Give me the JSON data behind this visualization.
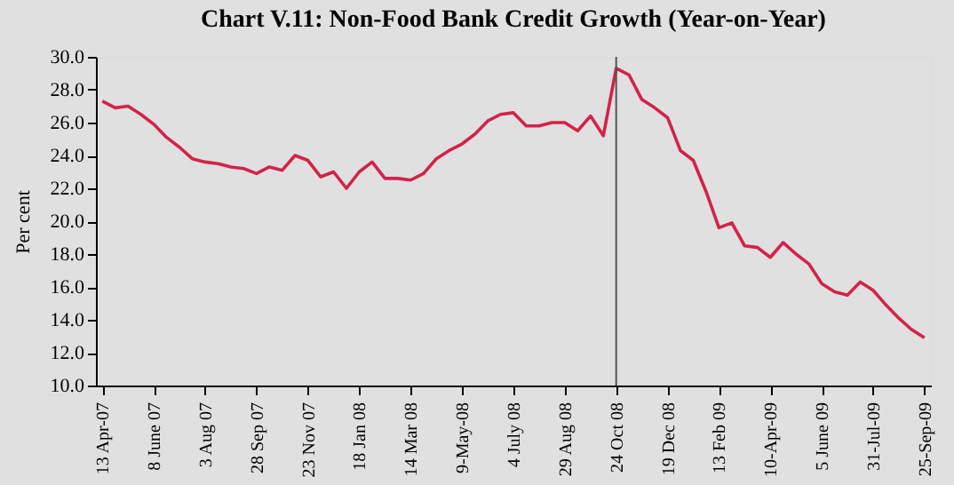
{
  "chart_data": {
    "type": "line",
    "title": "Chart V.11: Non-Food Bank Credit Growth (Year-on-Year)",
    "ylabel": "Per cent",
    "x": [
      "2007-04-13",
      "2007-04-27",
      "2007-05-11",
      "2007-05-25",
      "2007-06-08",
      "2007-06-22",
      "2007-07-06",
      "2007-07-20",
      "2007-08-03",
      "2007-08-17",
      "2007-08-31",
      "2007-09-14",
      "2007-09-28",
      "2007-10-12",
      "2007-10-26",
      "2007-11-09",
      "2007-11-23",
      "2007-12-07",
      "2007-12-21",
      "2008-01-04",
      "2008-01-18",
      "2008-02-01",
      "2008-02-15",
      "2008-02-29",
      "2008-03-14",
      "2008-03-28",
      "2008-04-11",
      "2008-04-25",
      "2008-05-09",
      "2008-05-23",
      "2008-06-06",
      "2008-06-20",
      "2008-07-04",
      "2008-07-18",
      "2008-08-01",
      "2008-08-15",
      "2008-08-29",
      "2008-09-12",
      "2008-09-26",
      "2008-10-10",
      "2008-10-24",
      "2008-11-07",
      "2008-11-21",
      "2008-12-05",
      "2008-12-19",
      "2009-01-02",
      "2009-01-16",
      "2009-01-30",
      "2009-02-13",
      "2009-02-27",
      "2009-03-13",
      "2009-03-27",
      "2009-04-10",
      "2009-04-24",
      "2009-05-08",
      "2009-05-22",
      "2009-06-05",
      "2009-06-19",
      "2009-07-03",
      "2009-07-17",
      "2009-07-31",
      "2009-08-14",
      "2009-08-28",
      "2009-09-11",
      "2009-09-25"
    ],
    "series": [
      {
        "color": "#d2234a",
        "values": [
          27.3,
          26.9,
          27.0,
          26.5,
          25.9,
          25.1,
          24.5,
          23.8,
          23.6,
          23.5,
          23.3,
          23.2,
          22.9,
          23.3,
          23.1,
          24.0,
          23.7,
          22.7,
          23.0,
          22.0,
          23.0,
          23.6,
          22.6,
          22.6,
          22.5,
          22.9,
          23.8,
          24.3,
          24.7,
          25.3,
          26.1,
          26.5,
          26.6,
          25.8,
          25.8,
          26.0,
          26.0,
          25.5,
          26.4,
          25.2,
          29.3,
          28.9,
          27.4,
          26.9,
          26.3,
          24.3,
          23.7,
          21.8,
          19.6,
          19.9,
          18.5,
          18.4,
          17.8,
          18.7,
          18.0,
          17.4,
          16.2,
          15.7,
          15.5,
          16.3,
          15.8,
          14.9,
          14.1,
          13.4,
          12.9
        ]
      }
    ],
    "xlim": [
      "2007-04-06",
      "2009-10-02"
    ],
    "xticks": [
      {
        "value": "2007-04-13",
        "label": "13 Apr-07"
      },
      {
        "value": "2007-06-08",
        "label": "8 June 07"
      },
      {
        "value": "2007-08-03",
        "label": "3 Aug 07"
      },
      {
        "value": "2007-09-28",
        "label": "28 Sep 07"
      },
      {
        "value": "2007-11-23",
        "label": "23 Nov 07"
      },
      {
        "value": "2008-01-18",
        "label": "18 Jan 08"
      },
      {
        "value": "2008-03-14",
        "label": "14 Mar 08"
      },
      {
        "value": "2008-05-09",
        "label": "9-May-08"
      },
      {
        "value": "2008-07-04",
        "label": "4 July 08"
      },
      {
        "value": "2008-08-29",
        "label": "29 Aug 08"
      },
      {
        "value": "2008-10-24",
        "label": "24 Oct 08"
      },
      {
        "value": "2008-12-19",
        "label": "19 Dec 08"
      },
      {
        "value": "2009-02-13",
        "label": "13 Feb 09"
      },
      {
        "value": "2009-04-10",
        "label": "10-Apr-09"
      },
      {
        "value": "2009-06-05",
        "label": "5 June 09"
      },
      {
        "value": "2009-07-31",
        "label": "31-Jul-09"
      },
      {
        "value": "2009-09-25",
        "label": "25-Sep-09"
      }
    ],
    "ylim": [
      10,
      30
    ],
    "yticks": [
      {
        "value": 10,
        "label": "10.0"
      },
      {
        "value": 12,
        "label": "12.0"
      },
      {
        "value": 14,
        "label": "14.0"
      },
      {
        "value": 16,
        "label": "16.0"
      },
      {
        "value": 18,
        "label": "18.0"
      },
      {
        "value": 20,
        "label": "20.0"
      },
      {
        "value": 22,
        "label": "22.0"
      },
      {
        "value": 24,
        "label": "24.0"
      },
      {
        "value": 26,
        "label": "26.0"
      },
      {
        "value": 28,
        "label": "28.0"
      },
      {
        "value": 30,
        "label": "30.0"
      }
    ],
    "ref_lines": [
      {
        "axis": "x",
        "value": "2008-10-24",
        "color": "#555555"
      }
    ],
    "marker": "none",
    "line_style": "solid"
  }
}
